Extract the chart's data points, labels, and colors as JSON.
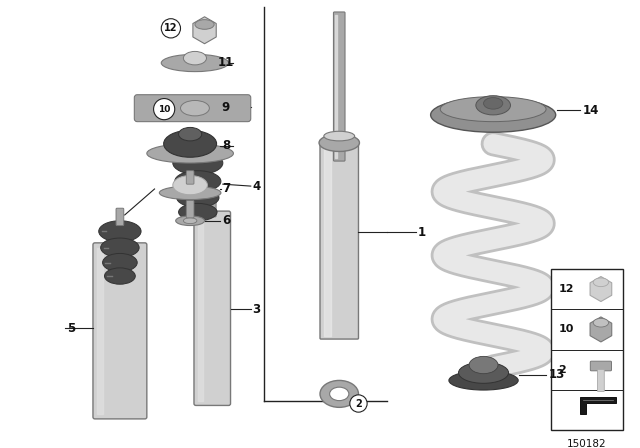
{
  "background_color": "#ffffff",
  "part_number_label": "150182",
  "line_color": "#222222",
  "text_color": "#111111",
  "gray_light": "#d0d0d0",
  "gray_mid": "#a8a8a8",
  "gray_dark": "#787878",
  "gray_body": "#b8b8b8",
  "gray_darker": "#606060",
  "rubber_dark": "#484848",
  "rubber_ring": "#585858",
  "spring_color": "#e8e8e8",
  "spring_edge": "#c0c0c0",
  "mount_gray": "#909090"
}
